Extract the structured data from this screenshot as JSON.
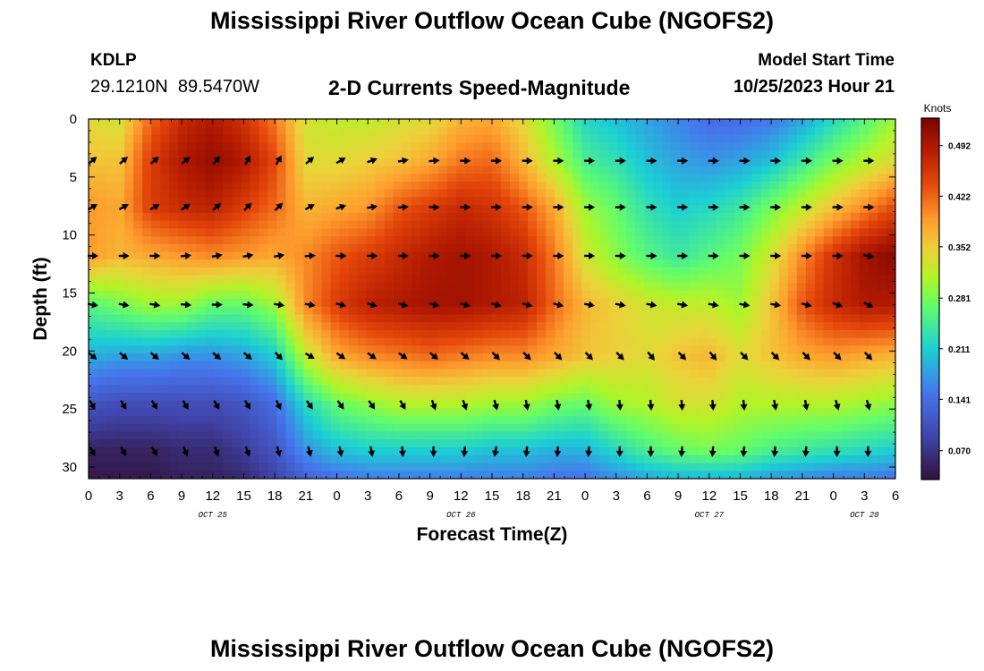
{
  "header": {
    "title_top": "Mississippi River Outflow Ocean Cube (NGOFS2)",
    "title_bottom": "Mississippi River Outflow Ocean Cube (NGOFS2)",
    "station": "KDLP",
    "coords": "29.1210N  89.5470W",
    "subtitle": "2-D Currents Speed-Magnitude",
    "start_label": "Model Start Time",
    "start_value": "10/25/2023 Hour 21"
  },
  "chart_data": {
    "type": "heatmap",
    "title": "2-D Currents Speed-Magnitude",
    "xlabel": "Forecast Time(Z)",
    "ylabel": "Depth (ft)",
    "ylim": [
      0,
      31
    ],
    "xlim_hours": [
      0,
      78
    ],
    "y_ticks": [
      0,
      5,
      10,
      15,
      20,
      25,
      30
    ],
    "x_tick_labels": [
      "0",
      "3",
      "6",
      "9",
      "12",
      "15",
      "18",
      "21",
      "0",
      "3",
      "6",
      "9",
      "12",
      "15",
      "18",
      "21",
      "0",
      "3",
      "6",
      "9",
      "12",
      "15",
      "18",
      "21",
      "0",
      "3",
      "6"
    ],
    "date_labels": [
      {
        "text": "OCT 25",
        "hour": 12
      },
      {
        "text": "OCT 26",
        "hour": 36
      },
      {
        "text": "OCT 27",
        "hour": 60
      },
      {
        "text": "OCT 28",
        "hour": 75
      }
    ],
    "colorbar": {
      "unit": "Knots",
      "min": 0.03,
      "max": 0.53,
      "tick_labels": [
        "0.492",
        "0.422",
        "0.352",
        "0.281",
        "0.211",
        "0.141",
        "0.070"
      ]
    },
    "depth_rows": [
      0,
      3.6,
      7.6,
      11.8,
      16.0,
      20.4,
      24.6,
      28.6,
      30.8
    ],
    "speed_hours": [
      0,
      3,
      6,
      9,
      12,
      15,
      18,
      21,
      24,
      27,
      30,
      33,
      36,
      39,
      42,
      45,
      48,
      51,
      54,
      57,
      60,
      63,
      66,
      69,
      72,
      75,
      78
    ],
    "speed": [
      [
        0.34,
        0.33,
        0.42,
        0.47,
        0.49,
        0.46,
        0.41,
        0.33,
        0.32,
        0.32,
        0.33,
        0.34,
        0.37,
        0.38,
        0.34,
        0.28,
        0.22,
        0.2,
        0.18,
        0.16,
        0.14,
        0.14,
        0.15,
        0.18,
        0.22,
        0.26,
        0.3
      ],
      [
        0.36,
        0.36,
        0.45,
        0.49,
        0.51,
        0.49,
        0.44,
        0.34,
        0.34,
        0.35,
        0.36,
        0.38,
        0.41,
        0.42,
        0.37,
        0.31,
        0.25,
        0.23,
        0.2,
        0.18,
        0.17,
        0.18,
        0.2,
        0.24,
        0.28,
        0.31,
        0.34
      ],
      [
        0.39,
        0.38,
        0.45,
        0.47,
        0.48,
        0.45,
        0.42,
        0.37,
        0.38,
        0.39,
        0.43,
        0.45,
        0.47,
        0.46,
        0.43,
        0.38,
        0.3,
        0.27,
        0.23,
        0.21,
        0.22,
        0.24,
        0.28,
        0.32,
        0.36,
        0.4,
        0.44
      ],
      [
        0.39,
        0.37,
        0.38,
        0.39,
        0.4,
        0.39,
        0.38,
        0.4,
        0.43,
        0.45,
        0.47,
        0.49,
        0.5,
        0.49,
        0.47,
        0.41,
        0.33,
        0.29,
        0.26,
        0.24,
        0.26,
        0.28,
        0.33,
        0.4,
        0.46,
        0.5,
        0.52
      ],
      [
        0.26,
        0.28,
        0.3,
        0.3,
        0.27,
        0.27,
        0.3,
        0.4,
        0.45,
        0.48,
        0.49,
        0.5,
        0.5,
        0.49,
        0.48,
        0.42,
        0.37,
        0.35,
        0.33,
        0.32,
        0.32,
        0.3,
        0.36,
        0.43,
        0.47,
        0.49,
        0.49
      ],
      [
        0.19,
        0.18,
        0.18,
        0.17,
        0.17,
        0.18,
        0.21,
        0.32,
        0.38,
        0.4,
        0.41,
        0.42,
        0.41,
        0.4,
        0.4,
        0.38,
        0.36,
        0.35,
        0.34,
        0.36,
        0.37,
        0.34,
        0.36,
        0.38,
        0.39,
        0.38,
        0.37
      ],
      [
        0.11,
        0.1,
        0.1,
        0.1,
        0.1,
        0.11,
        0.14,
        0.22,
        0.27,
        0.29,
        0.31,
        0.31,
        0.31,
        0.3,
        0.3,
        0.28,
        0.27,
        0.3,
        0.31,
        0.33,
        0.33,
        0.31,
        0.31,
        0.31,
        0.31,
        0.3,
        0.29
      ],
      [
        0.05,
        0.05,
        0.05,
        0.06,
        0.06,
        0.08,
        0.11,
        0.17,
        0.2,
        0.21,
        0.21,
        0.21,
        0.21,
        0.2,
        0.2,
        0.19,
        0.19,
        0.22,
        0.25,
        0.27,
        0.28,
        0.27,
        0.25,
        0.24,
        0.23,
        0.22,
        0.21
      ],
      [
        0.04,
        0.04,
        0.04,
        0.05,
        0.05,
        0.06,
        0.09,
        0.13,
        0.15,
        0.16,
        0.16,
        0.16,
        0.16,
        0.16,
        0.16,
        0.15,
        0.15,
        0.17,
        0.19,
        0.2,
        0.2,
        0.2,
        0.18,
        0.17,
        0.16,
        0.16,
        0.15
      ]
    ],
    "vector_hours": [
      0,
      3,
      6,
      9,
      12,
      15,
      18,
      21,
      24,
      27,
      30,
      33,
      36,
      39,
      42,
      45,
      48,
      51,
      54,
      57,
      60,
      63,
      66,
      69,
      72,
      75
    ],
    "vector_depths": [
      3.6,
      7.6,
      11.8,
      16.0,
      20.4,
      24.6,
      28.6
    ],
    "vector_angles_deg": [
      [
        -40,
        -40,
        -40,
        -40,
        -50,
        -60,
        -60,
        -40,
        -30,
        -20,
        -10,
        -5,
        0,
        0,
        0,
        0,
        0,
        0,
        0,
        0,
        0,
        0,
        0,
        0,
        0,
        0
      ],
      [
        -30,
        -30,
        -30,
        -35,
        -40,
        -45,
        -45,
        -30,
        -20,
        -10,
        -5,
        0,
        0,
        0,
        0,
        0,
        0,
        0,
        0,
        0,
        0,
        0,
        0,
        0,
        0,
        0
      ],
      [
        0,
        0,
        0,
        -5,
        -10,
        -10,
        -10,
        -5,
        0,
        0,
        0,
        0,
        0,
        0,
        0,
        0,
        0,
        0,
        0,
        0,
        0,
        0,
        0,
        0,
        0,
        10
      ],
      [
        10,
        10,
        10,
        5,
        0,
        5,
        10,
        10,
        15,
        15,
        15,
        15,
        15,
        15,
        15,
        15,
        10,
        10,
        10,
        10,
        10,
        10,
        10,
        15,
        20,
        25
      ],
      [
        40,
        40,
        40,
        40,
        40,
        40,
        45,
        30,
        35,
        35,
        35,
        40,
        40,
        45,
        45,
        45,
        45,
        45,
        50,
        45,
        50,
        45,
        45,
        45,
        45,
        45
      ],
      [
        60,
        60,
        60,
        60,
        60,
        60,
        65,
        55,
        55,
        55,
        60,
        70,
        70,
        75,
        80,
        80,
        80,
        85,
        85,
        85,
        85,
        85,
        80,
        80,
        75,
        75
      ],
      [
        60,
        60,
        60,
        70,
        70,
        70,
        75,
        75,
        80,
        80,
        85,
        90,
        95,
        100,
        95,
        95,
        95,
        90,
        90,
        95,
        95,
        95,
        95,
        95,
        90,
        90
      ]
    ]
  }
}
